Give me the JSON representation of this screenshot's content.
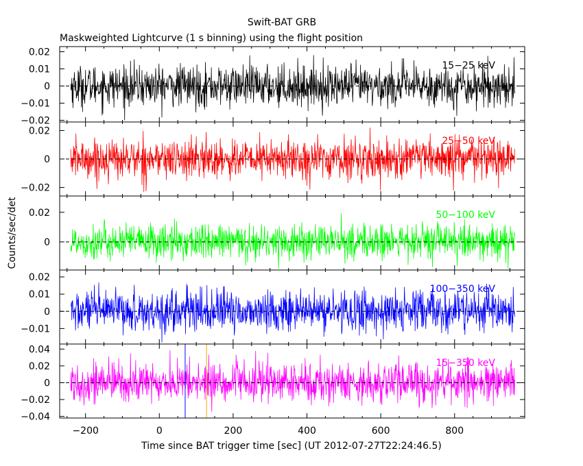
{
  "figure": {
    "title": "Swift-BAT GRB",
    "subtitle": "Maskweighted Lightcurve (1 s binning) using the flight position",
    "xlabel": "Time since BAT trigger time [sec] (UT 2012-07-27T22:24:46.5)",
    "ylabel": "Counts/sec/det",
    "x_tick_labels": [
      "−200",
      "0",
      "200",
      "400",
      "600",
      "800"
    ],
    "markers": [
      {
        "x": 70,
        "color": "#0000ff"
      },
      {
        "x": 128,
        "color": "#ffa500"
      }
    ]
  },
  "chart_data": [
    {
      "type": "line",
      "band": "15−25 keV",
      "color": "#000000",
      "x_range": [
        -240,
        963
      ],
      "xlim": [
        -270,
        990
      ],
      "ylim": [
        -0.021,
        0.023
      ],
      "y_ticks": [
        -0.02,
        -0.01,
        0,
        0.01,
        0.02
      ],
      "y_tick_labels": [
        "−0.02",
        "−0.01",
        "0",
        "0.01",
        "0.02"
      ],
      "noise_sigma": 0.006,
      "zero_line": true
    },
    {
      "type": "line",
      "band": "25−50 keV",
      "color": "#ff0000",
      "x_range": [
        -240,
        963
      ],
      "xlim": [
        -270,
        990
      ],
      "ylim": [
        -0.026,
        0.026
      ],
      "y_ticks": [
        -0.02,
        0,
        0.02
      ],
      "y_tick_labels": [
        "−0.02",
        "0",
        "0.02"
      ],
      "noise_sigma": 0.007,
      "zero_line": true
    },
    {
      "type": "line",
      "band": "50−100 keV",
      "color": "#00ff00",
      "x_range": [
        -240,
        963
      ],
      "xlim": [
        -270,
        990
      ],
      "ylim": [
        -0.019,
        0.031
      ],
      "y_ticks": [
        0,
        0.02
      ],
      "y_tick_labels": [
        "0",
        "0.02"
      ],
      "noise_sigma": 0.006,
      "zero_line": true
    },
    {
      "type": "line",
      "band": "100−350 keV",
      "color": "#0000ff",
      "x_range": [
        -240,
        963
      ],
      "xlim": [
        -270,
        990
      ],
      "ylim": [
        -0.019,
        0.024
      ],
      "y_ticks": [
        -0.01,
        0,
        0.01,
        0.02
      ],
      "y_tick_labels": [
        "−0.01",
        "0",
        "0.01",
        "0.02"
      ],
      "noise_sigma": 0.006,
      "zero_line": true
    },
    {
      "type": "line",
      "band": "15−350 keV",
      "color": "#ff00ff",
      "x_range": [
        -240,
        963
      ],
      "xlim": [
        -270,
        990
      ],
      "ylim": [
        -0.042,
        0.046
      ],
      "y_ticks": [
        -0.04,
        -0.02,
        0,
        0.02,
        0.04
      ],
      "y_tick_labels": [
        "−0.04",
        "−0.02",
        "0",
        "0.02",
        "0.04"
      ],
      "noise_sigma": 0.012,
      "zero_line": true
    }
  ]
}
